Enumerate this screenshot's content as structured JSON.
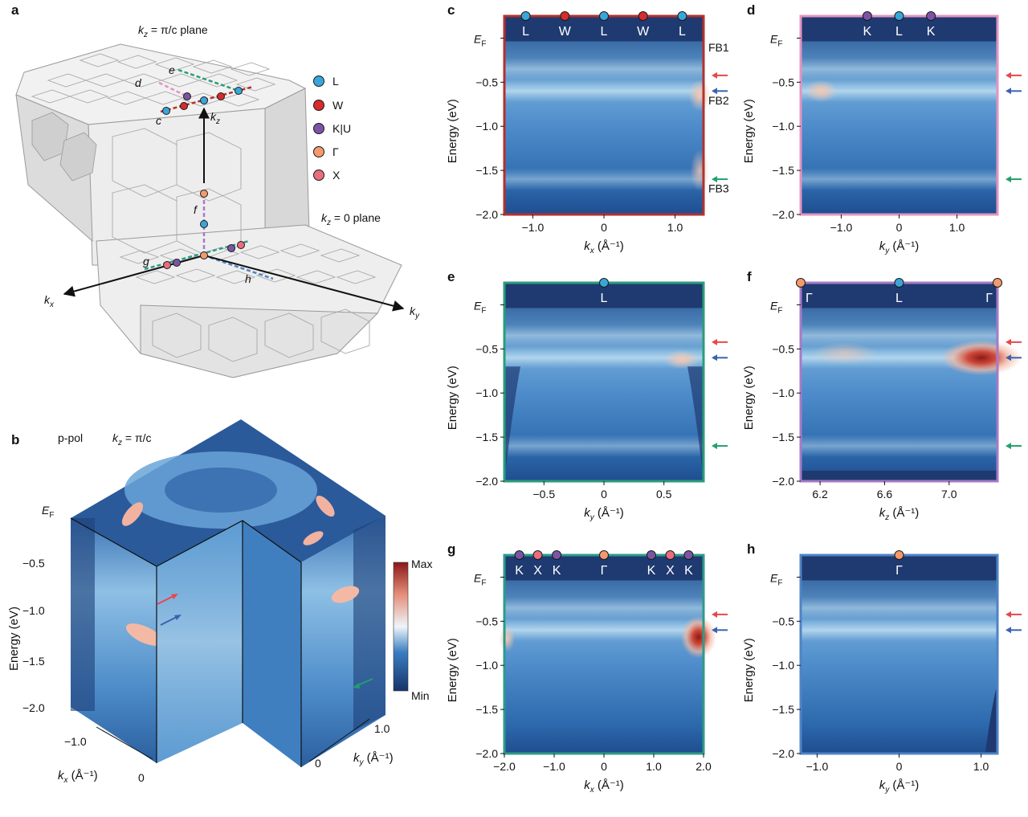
{
  "labels": {
    "a": "a",
    "b": "b",
    "c": "c",
    "d": "d",
    "e": "e",
    "f": "f",
    "g": "g",
    "h": "h"
  },
  "colors": {
    "L": "#3aa6d8",
    "W": "#d62c2c",
    "KU": "#7a55a5",
    "Gamma": "#f49a6c",
    "X": "#e86d7e",
    "arrow_red": "#e8474b",
    "arrow_blue": "#3a62b0",
    "arrow_green": "#22a06b",
    "frame_c": "#b3322e",
    "frame_d": "#e394c2",
    "frame_e": "#2a9d7a",
    "frame_f": "#a57bc6",
    "frame_g": "#2e9b88",
    "frame_h": "#4f83c5"
  },
  "panel_a": {
    "plane_top_k": "k",
    "plane_top_sub": "z",
    "plane_top_rest": " = π/c plane",
    "plane_bottom_k": "k",
    "plane_bottom_sub": "z",
    "plane_bottom_rest": " = 0 plane",
    "axis_kx": "k",
    "axis_kx_sub": "x",
    "axis_ky": "k",
    "axis_ky_sub": "y",
    "axis_kz": "k",
    "axis_kz_sub": "z",
    "cut_c": "c",
    "cut_d": "d",
    "cut_e": "e",
    "cut_f": "f",
    "cut_g": "g",
    "cut_h": "h",
    "legend": [
      "L",
      "W",
      "K|U",
      "Γ",
      "X"
    ]
  },
  "panel_b": {
    "pol": "p-pol",
    "kz_k": "k",
    "kz_sub": "z",
    "kz_rest": " = π/c",
    "ef": "E",
    "ef_sub": "F",
    "energy_ticks": [
      "−0.5",
      "−1.0",
      "−1.5",
      "−2.0"
    ],
    "ylabel": "Energy (eV)",
    "kx_ticks": [
      "−1.0",
      "0"
    ],
    "kx_label": "k",
    "kx_label_sub": "x",
    "kx_label_unit": " (Å⁻¹)",
    "ky_ticks": [
      "1.0",
      "0"
    ],
    "ky_label": "k",
    "ky_label_sub": "y",
    "ky_label_unit": " (Å⁻¹)",
    "colorbar_max": "Max",
    "colorbar_min": "Min"
  },
  "fb_labels": [
    "FB1",
    "FB2",
    "FB3"
  ],
  "common": {
    "ylabel": "Energy (eV)",
    "ef": "E",
    "ef_sub": "F",
    "energy_ticks": [
      "−0.5",
      "−1.0",
      "−1.5",
      "−2.0"
    ]
  },
  "chart_data": [
    {
      "panel": "c",
      "type": "heatmap",
      "xlabel": "kx (Å⁻¹)",
      "ylabel": "Energy (eV)",
      "xlim": [
        -1.4,
        1.4
      ],
      "ylim": [
        -2.0,
        0.25
      ],
      "xticks": [
        -1.0,
        0,
        1.0
      ],
      "xtick_labels": [
        "−1.0",
        "0",
        "1.0"
      ],
      "symmetry_points": [
        {
          "label": "L",
          "k": -1.1,
          "kind": "L"
        },
        {
          "label": "W",
          "k": -0.55,
          "kind": "W"
        },
        {
          "label": "L",
          "k": 0.0,
          "kind": "L"
        },
        {
          "label": "W",
          "k": 0.55,
          "kind": "W"
        },
        {
          "label": "L",
          "k": 1.1,
          "kind": "L"
        }
      ],
      "flat_band_energies": [
        -0.35,
        -0.6,
        -1.6
      ]
    },
    {
      "panel": "d",
      "type": "heatmap",
      "xlabel": "ky (Å⁻¹)",
      "ylabel": "Energy (eV)",
      "xlim": [
        -1.7,
        1.7
      ],
      "ylim": [
        -2.0,
        0.25
      ],
      "xticks": [
        -1.0,
        0,
        1.0
      ],
      "xtick_labels": [
        "−1.0",
        "0",
        "1.0"
      ],
      "symmetry_points": [
        {
          "label": "K",
          "k": -0.55,
          "kind": "KU"
        },
        {
          "label": "L",
          "k": 0.0,
          "kind": "L"
        },
        {
          "label": "K",
          "k": 0.55,
          "kind": "KU"
        }
      ],
      "flat_band_energies": [
        -0.35,
        -0.6,
        -1.6
      ]
    },
    {
      "panel": "e",
      "type": "heatmap",
      "xlabel": "ky (Å⁻¹)",
      "ylabel": "Energy (eV)",
      "xlim": [
        -0.83,
        0.83
      ],
      "ylim": [
        -2.0,
        0.25
      ],
      "xticks": [
        -0.5,
        0,
        0.5
      ],
      "xtick_labels": [
        "−0.5",
        "0",
        "0.5"
      ],
      "symmetry_points": [
        {
          "label": "L",
          "k": 0.0,
          "kind": "L"
        }
      ],
      "flat_band_energies": [
        -0.35,
        -0.6,
        -1.6
      ]
    },
    {
      "panel": "f",
      "type": "heatmap",
      "xlabel": "kz (Å⁻¹)",
      "ylabel": "Energy (eV)",
      "xlim": [
        6.08,
        7.3
      ],
      "ylim": [
        -2.0,
        0.25
      ],
      "xticks": [
        6.2,
        6.6,
        7.0
      ],
      "xtick_labels": [
        "6.2",
        "6.6",
        "7.0"
      ],
      "symmetry_points": [
        {
          "label": "Γ",
          "k": 6.08,
          "kind": "Gamma"
        },
        {
          "label": "L",
          "k": 6.69,
          "kind": "L"
        },
        {
          "label": "Γ",
          "k": 7.3,
          "kind": "Gamma"
        }
      ],
      "flat_band_energies": [
        -0.35,
        -0.6,
        -1.6
      ]
    },
    {
      "panel": "g",
      "type": "heatmap",
      "xlabel": "kx (Å⁻¹)",
      "ylabel": "Energy (eV)",
      "xlim": [
        -2.0,
        2.0
      ],
      "ylim": [
        -2.0,
        0.25
      ],
      "xticks": [
        -2.0,
        -1.0,
        0,
        1.0,
        2.0
      ],
      "xtick_labels": [
        "−2.0",
        "−1.0",
        "0",
        "1.0",
        "2.0"
      ],
      "symmetry_points": [
        {
          "label": "K",
          "k": -1.7,
          "kind": "KU"
        },
        {
          "label": "X",
          "k": -1.33,
          "kind": "X"
        },
        {
          "label": "K",
          "k": -0.95,
          "kind": "KU"
        },
        {
          "label": "Γ",
          "k": 0.0,
          "kind": "Gamma"
        },
        {
          "label": "K",
          "k": 0.95,
          "kind": "KU"
        },
        {
          "label": "X",
          "k": 1.33,
          "kind": "X"
        },
        {
          "label": "K",
          "k": 1.7,
          "kind": "KU"
        }
      ],
      "flat_band_energies": [
        -0.35,
        -0.6
      ]
    },
    {
      "panel": "h",
      "type": "heatmap",
      "xlabel": "ky (Å⁻¹)",
      "ylabel": "Energy (eV)",
      "xlim": [
        -1.2,
        1.2
      ],
      "ylim": [
        -2.0,
        0.25
      ],
      "xticks": [
        -1.0,
        0,
        1.0
      ],
      "xtick_labels": [
        "−1.0",
        "0",
        "1.0"
      ],
      "symmetry_points": [
        {
          "label": "Γ",
          "k": 0.0,
          "kind": "Gamma"
        }
      ],
      "flat_band_energies": [
        -0.35,
        -0.6
      ]
    }
  ]
}
